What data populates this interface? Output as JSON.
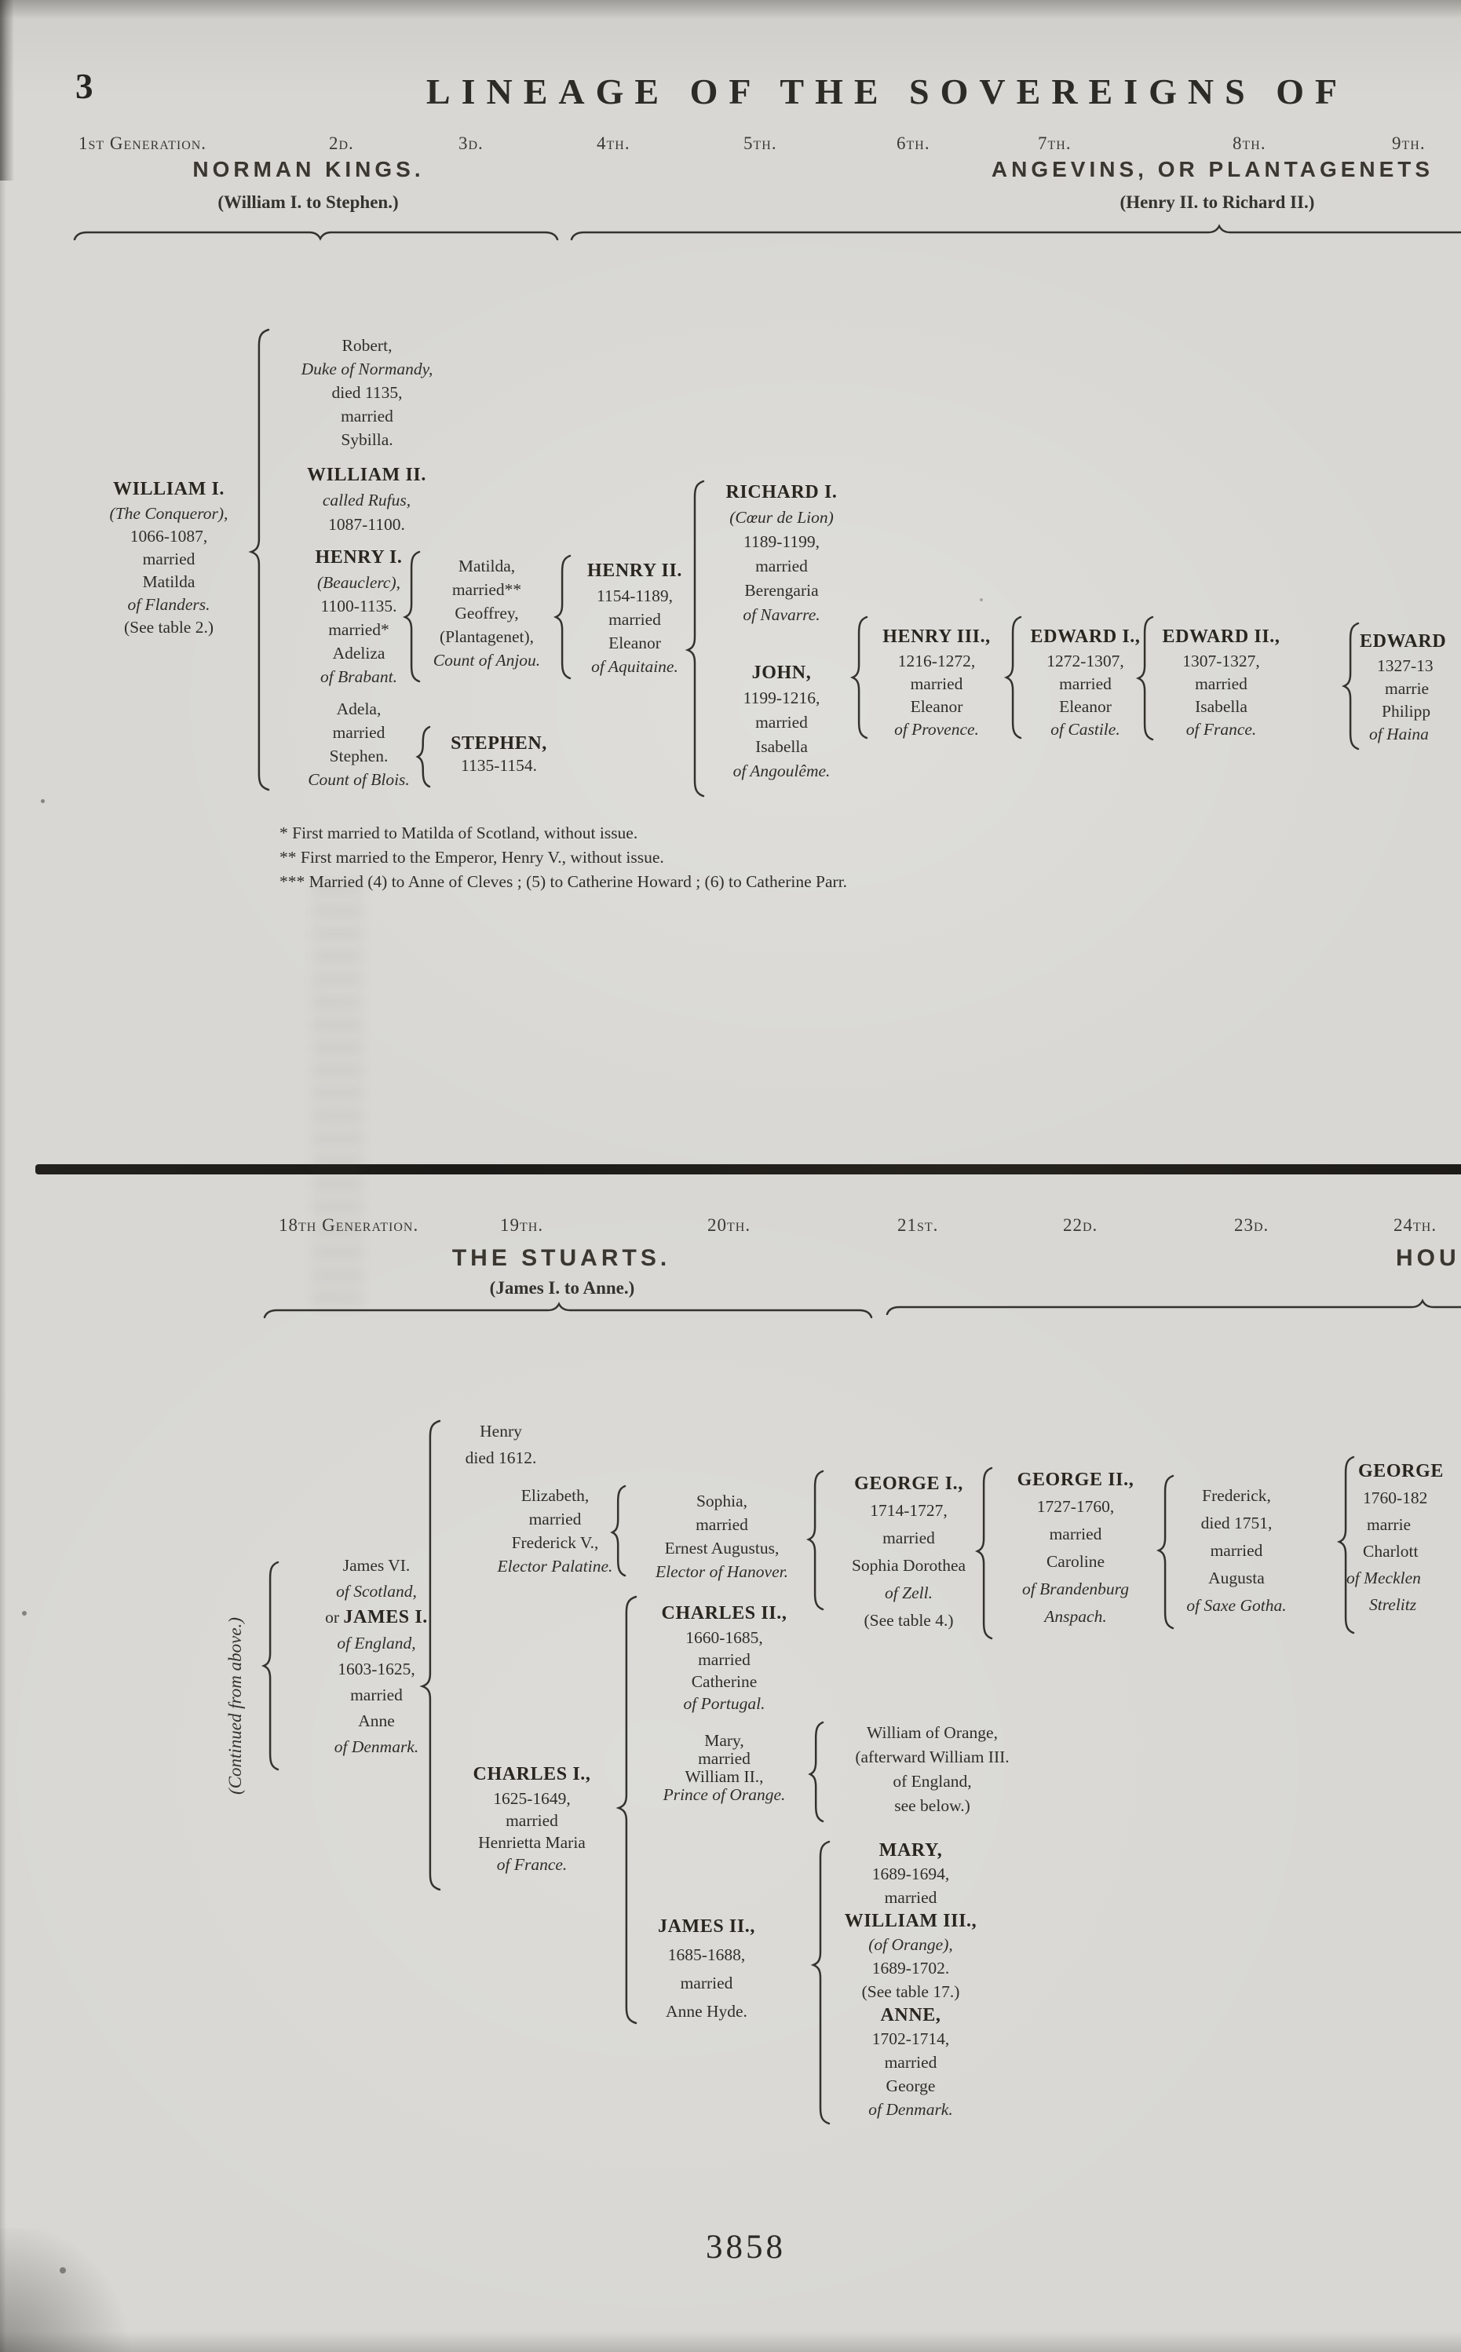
{
  "header": {
    "page_number": "3",
    "title": "LINEAGE OF THE SOVEREIGNS OF"
  },
  "footer": {
    "page_number": "3858"
  },
  "sections": [
    {
      "generation_labels": [
        "1st Generation.",
        "2d.",
        "3d.",
        "4th.",
        "5th.",
        "6th.",
        "7th.",
        "8th.",
        "9th."
      ],
      "houses": [
        {
          "name": "NORMAN KINGS.",
          "range": "(William I. to Stephen.)"
        },
        {
          "name": "ANGEVINS, OR PLANTAGENETS",
          "range": "(Henry II. to Richard II.)"
        }
      ],
      "nodes": [
        {
          "id": "william-i",
          "lines": [
            {
              "t": "WILLIAM I.",
              "s": "b"
            },
            {
              "t": "(The Conqueror),",
              "s": "i"
            },
            {
              "t": "1066-1087,",
              "s": "p"
            },
            {
              "t": "married",
              "s": "p"
            },
            {
              "t": "Matilda",
              "s": "p"
            },
            {
              "t": "of Flanders.",
              "s": "i"
            },
            {
              "t": "(See table 2.)",
              "s": "p"
            }
          ]
        },
        {
          "id": "robert",
          "lines": [
            {
              "t": "Robert,",
              "s": "p"
            },
            {
              "t": "Duke of Normandy,",
              "s": "i"
            },
            {
              "t": "died 1135,",
              "s": "p"
            },
            {
              "t": "married",
              "s": "p"
            },
            {
              "t": "Sybilla.",
              "s": "p"
            }
          ]
        },
        {
          "id": "william-ii",
          "lines": [
            {
              "t": "WILLIAM II.",
              "s": "b"
            },
            {
              "t": "called Rufus,",
              "s": "i"
            },
            {
              "t": "1087-1100.",
              "s": "p"
            }
          ]
        },
        {
          "id": "henry-i",
          "lines": [
            {
              "t": "HENRY I.",
              "s": "b"
            },
            {
              "t": "(Beauclerc),",
              "s": "i"
            },
            {
              "t": "1100-1135.",
              "s": "p"
            },
            {
              "t": "married*",
              "s": "p"
            },
            {
              "t": "Adeliza",
              "s": "p"
            },
            {
              "t": "of Brabant.",
              "s": "i"
            }
          ]
        },
        {
          "id": "adela",
          "lines": [
            {
              "t": "Adela,",
              "s": "p"
            },
            {
              "t": "married",
              "s": "p"
            },
            {
              "t": "Stephen.",
              "s": "p"
            },
            {
              "t": "Count of Blois.",
              "s": "i"
            }
          ]
        },
        {
          "id": "matilda",
          "lines": [
            {
              "t": "Matilda,",
              "s": "p"
            },
            {
              "t": "married**",
              "s": "p"
            },
            {
              "t": "Geoffrey,",
              "s": "p"
            },
            {
              "t": "(Plantagenet),",
              "s": "p"
            },
            {
              "t": "Count of Anjou.",
              "s": "i"
            }
          ]
        },
        {
          "id": "stephen",
          "lines": [
            {
              "t": "STEPHEN,",
              "s": "b"
            },
            {
              "t": "1135-1154.",
              "s": "p"
            }
          ]
        },
        {
          "id": "henry-ii",
          "lines": [
            {
              "t": "HENRY II.",
              "s": "b"
            },
            {
              "t": "1154-1189,",
              "s": "p"
            },
            {
              "t": "married",
              "s": "p"
            },
            {
              "t": "Eleanor",
              "s": "p"
            },
            {
              "t": "of Aquitaine.",
              "s": "i"
            }
          ]
        },
        {
          "id": "richard-i",
          "lines": [
            {
              "t": "RICHARD I.",
              "s": "b"
            },
            {
              "t": "(Cœur de Lion)",
              "s": "i"
            },
            {
              "t": "1189-1199,",
              "s": "p"
            },
            {
              "t": "married",
              "s": "p"
            },
            {
              "t": "Berengaria",
              "s": "p"
            },
            {
              "t": "of Navarre.",
              "s": "i"
            }
          ]
        },
        {
          "id": "john",
          "lines": [
            {
              "t": "JOHN,",
              "s": "b"
            },
            {
              "t": "1199-1216,",
              "s": "p"
            },
            {
              "t": "married",
              "s": "p"
            },
            {
              "t": "Isabella",
              "s": "p"
            },
            {
              "t": "of Angoulême.",
              "s": "i"
            }
          ]
        },
        {
          "id": "henry-iii",
          "lines": [
            {
              "t": "HENRY III.,",
              "s": "b"
            },
            {
              "t": "1216-1272,",
              "s": "p"
            },
            {
              "t": "married",
              "s": "p"
            },
            {
              "t": "Eleanor",
              "s": "p"
            },
            {
              "t": "of Provence.",
              "s": "i"
            }
          ]
        },
        {
          "id": "edward-i",
          "lines": [
            {
              "t": "EDWARD I.,",
              "s": "b"
            },
            {
              "t": "1272-1307,",
              "s": "p"
            },
            {
              "t": "married",
              "s": "p"
            },
            {
              "t": "Eleanor",
              "s": "p"
            },
            {
              "t": "of Castile.",
              "s": "i"
            }
          ]
        },
        {
          "id": "edward-ii",
          "lines": [
            {
              "t": "EDWARD II.,",
              "s": "b"
            },
            {
              "t": "1307-1327,",
              "s": "p"
            },
            {
              "t": "married",
              "s": "p"
            },
            {
              "t": "Isabella",
              "s": "p"
            },
            {
              "t": "of France.",
              "s": "i"
            }
          ]
        },
        {
          "id": "edward-iii",
          "lines": [
            {
              "t": "EDWARD",
              "s": "b"
            },
            {
              "t": "1327-13",
              "s": "p"
            },
            {
              "t": "marrie",
              "s": "p"
            },
            {
              "t": "Philipp",
              "s": "p"
            },
            {
              "t": "of Haina",
              "s": "i"
            }
          ]
        }
      ],
      "footnotes": [
        "* First married to Matilda of Scotland, without issue.",
        "** First married to the Emperor, Henry V., without issue.",
        "*** Married (4) to Anne of Cleves ; (5) to Catherine Howard ; (6) to Catherine Parr."
      ]
    },
    {
      "generation_labels": [
        "18th Generation.",
        "19th.",
        "20th.",
        "21st.",
        "22d.",
        "23d.",
        "24th."
      ],
      "houses": [
        {
          "name": "THE STUARTS.",
          "range": "(James I. to Anne.)"
        },
        {
          "name": "HOU",
          "range": ""
        }
      ],
      "continued_note": "(Continued from above.)",
      "nodes": [
        {
          "id": "james-vi",
          "lines": [
            {
              "t": "James VI.",
              "s": "p"
            },
            {
              "t": "of Scotland,",
              "s": "i"
            },
            {
              "parts": [
                {
                  "t": "or ",
                  "s": "p"
                },
                {
                  "t": "JAMES I.",
                  "s": "b"
                }
              ]
            },
            {
              "t": "of England,",
              "s": "i"
            },
            {
              "t": "1603-1625,",
              "s": "p"
            },
            {
              "t": "married",
              "s": "p"
            },
            {
              "t": "Anne",
              "s": "p"
            },
            {
              "t": "of Denmark.",
              "s": "i"
            }
          ]
        },
        {
          "id": "henry-stuart",
          "lines": [
            {
              "t": "Henry",
              "s": "p"
            },
            {
              "t": "died 1612.",
              "s": "p"
            }
          ]
        },
        {
          "id": "elizabeth",
          "lines": [
            {
              "t": "Elizabeth,",
              "s": "p"
            },
            {
              "t": "married",
              "s": "p"
            },
            {
              "t": "Frederick V.,",
              "s": "p"
            },
            {
              "t": "Elector Palatine.",
              "s": "i"
            }
          ]
        },
        {
          "id": "sophia",
          "lines": [
            {
              "t": "Sophia,",
              "s": "p"
            },
            {
              "t": "married",
              "s": "p"
            },
            {
              "t": "Ernest Augustus,",
              "s": "p"
            },
            {
              "t": "Elector of Hanover.",
              "s": "i"
            }
          ]
        },
        {
          "id": "charles-i",
          "lines": [
            {
              "t": "CHARLES I.,",
              "s": "b"
            },
            {
              "t": "1625-1649,",
              "s": "p"
            },
            {
              "t": "married",
              "s": "p"
            },
            {
              "t": "Henrietta Maria",
              "s": "p"
            },
            {
              "t": "of France.",
              "s": "i"
            }
          ]
        },
        {
          "id": "charles-ii",
          "lines": [
            {
              "t": "CHARLES II.,",
              "s": "b"
            },
            {
              "t": "1660-1685,",
              "s": "p"
            },
            {
              "t": "married",
              "s": "p"
            },
            {
              "t": "Catherine",
              "s": "p"
            },
            {
              "t": "of Portugal.",
              "s": "i"
            }
          ]
        },
        {
          "id": "mary-princess",
          "lines": [
            {
              "t": "Mary,",
              "s": "p"
            },
            {
              "t": "married",
              "s": "p"
            },
            {
              "t": "William II.,",
              "s": "p"
            },
            {
              "t": "Prince of Orange.",
              "s": "i"
            }
          ]
        },
        {
          "id": "william-of-orange",
          "lines": [
            {
              "t": "William of Orange,",
              "s": "p"
            },
            {
              "t": "(afterward William III.",
              "s": "p"
            },
            {
              "t": "of England,",
              "s": "p"
            },
            {
              "t": "see below.)",
              "s": "p"
            }
          ]
        },
        {
          "id": "james-ii",
          "lines": [
            {
              "t": "JAMES II.,",
              "s": "b"
            },
            {
              "t": "1685-1688,",
              "s": "p"
            },
            {
              "t": "married",
              "s": "p"
            },
            {
              "t": "Anne Hyde.",
              "s": "p"
            }
          ]
        },
        {
          "id": "mary-william-anne",
          "lines": [
            {
              "t": "MARY,",
              "s": "b"
            },
            {
              "t": "1689-1694,",
              "s": "p"
            },
            {
              "t": "married",
              "s": "p"
            },
            {
              "t": "WILLIAM III.,",
              "s": "b"
            },
            {
              "t": "(of Orange),",
              "s": "i"
            },
            {
              "t": "1689-1702.",
              "s": "p"
            },
            {
              "t": "(See table 17.)",
              "s": "p"
            },
            {
              "t": "ANNE,",
              "s": "b"
            },
            {
              "t": "1702-1714,",
              "s": "p"
            },
            {
              "t": "married",
              "s": "p"
            },
            {
              "t": "George",
              "s": "p"
            },
            {
              "t": "of Denmark.",
              "s": "i"
            }
          ]
        },
        {
          "id": "george-i",
          "lines": [
            {
              "t": "GEORGE I.,",
              "s": "b"
            },
            {
              "t": "1714-1727,",
              "s": "p"
            },
            {
              "t": "married",
              "s": "p"
            },
            {
              "t": "Sophia Dorothea",
              "s": "p"
            },
            {
              "t": "of Zell.",
              "s": "i"
            },
            {
              "t": "(See table 4.)",
              "s": "p"
            }
          ]
        },
        {
          "id": "george-ii",
          "lines": [
            {
              "t": "GEORGE II.,",
              "s": "b"
            },
            {
              "t": "1727-1760,",
              "s": "p"
            },
            {
              "t": "married",
              "s": "p"
            },
            {
              "t": "Caroline",
              "s": "p"
            },
            {
              "t": "of Brandenburg",
              "s": "i"
            },
            {
              "t": "Anspach.",
              "s": "i"
            }
          ]
        },
        {
          "id": "frederick",
          "lines": [
            {
              "t": "Frederick,",
              "s": "p"
            },
            {
              "t": "died 1751,",
              "s": "p"
            },
            {
              "t": "married",
              "s": "p"
            },
            {
              "t": "Augusta",
              "s": "p"
            },
            {
              "t": "of Saxe Gotha.",
              "s": "i"
            }
          ]
        },
        {
          "id": "george-iii",
          "lines": [
            {
              "t": "GEORGE",
              "s": "b"
            },
            {
              "t": "1760-182",
              "s": "p"
            },
            {
              "t": "marrie",
              "s": "p"
            },
            {
              "t": "Charlott",
              "s": "p"
            },
            {
              "t": "of Mecklen",
              "s": "i"
            },
            {
              "t": "Strelitz",
              "s": "i"
            }
          ]
        }
      ]
    }
  ]
}
